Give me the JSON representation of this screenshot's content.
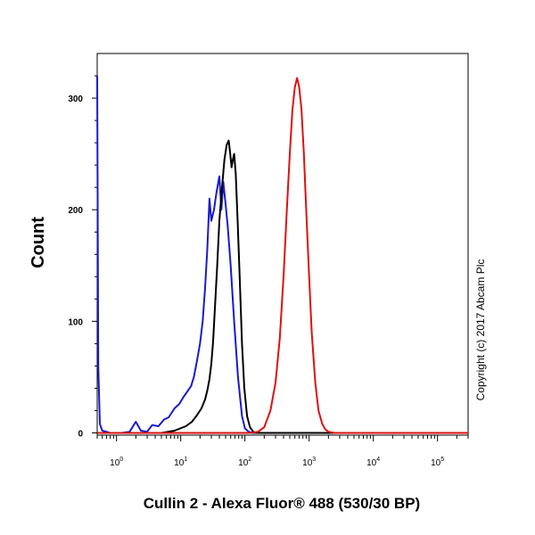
{
  "chart_data": {
    "type": "line",
    "xlabel": "Cullin 2 - Alexa Fluor® 488 (530/30 BP)",
    "ylabel": "Count",
    "copyright": "Copyright (c) 2017 Abcam Plc",
    "x_scale": "log",
    "xlim": [
      0.5,
      300000
    ],
    "ylim": [
      -2,
      340
    ],
    "yticks": [
      0,
      100,
      200,
      300
    ],
    "xticks": [
      {
        "base": "10",
        "exp": "0",
        "value": 1
      },
      {
        "base": "10",
        "exp": "1",
        "value": 10
      },
      {
        "base": "10",
        "exp": "2",
        "value": 100
      },
      {
        "base": "10",
        "exp": "3",
        "value": 1000
      },
      {
        "base": "10",
        "exp": "4",
        "value": 10000
      },
      {
        "base": "10",
        "exp": "5",
        "value": 100000
      }
    ],
    "series": [
      {
        "color": "#1a1acc",
        "points": [
          [
            0.5,
            320
          ],
          [
            0.52,
            60
          ],
          [
            0.55,
            8
          ],
          [
            0.6,
            2
          ],
          [
            0.8,
            0
          ],
          [
            1.2,
            0
          ],
          [
            1.6,
            1
          ],
          [
            2.0,
            10
          ],
          [
            2.4,
            2
          ],
          [
            3,
            1
          ],
          [
            3.6,
            7
          ],
          [
            4.5,
            6
          ],
          [
            5.5,
            12
          ],
          [
            6.5,
            14
          ],
          [
            8,
            22
          ],
          [
            9.5,
            26
          ],
          [
            11,
            32
          ],
          [
            13,
            38
          ],
          [
            14.5,
            42
          ],
          [
            16,
            50
          ],
          [
            18,
            65
          ],
          [
            20,
            80
          ],
          [
            22,
            100
          ],
          [
            24,
            130
          ],
          [
            26,
            165
          ],
          [
            28,
            210
          ],
          [
            30,
            190
          ],
          [
            33,
            200
          ],
          [
            36,
            215
          ],
          [
            40,
            230
          ],
          [
            43,
            200
          ],
          [
            46,
            225
          ],
          [
            50,
            205
          ],
          [
            54,
            185
          ],
          [
            60,
            150
          ],
          [
            68,
            100
          ],
          [
            78,
            50
          ],
          [
            90,
            15
          ],
          [
            100,
            4
          ],
          [
            115,
            1
          ],
          [
            130,
            0
          ],
          [
            200,
            0
          ],
          [
            300000,
            0
          ]
        ]
      },
      {
        "color": "#000000",
        "points": [
          [
            0.5,
            0
          ],
          [
            2,
            0
          ],
          [
            5,
            0
          ],
          [
            8,
            2
          ],
          [
            12,
            6
          ],
          [
            15,
            10
          ],
          [
            18,
            16
          ],
          [
            21,
            22
          ],
          [
            24,
            30
          ],
          [
            26,
            38
          ],
          [
            28,
            48
          ],
          [
            30,
            62
          ],
          [
            32,
            82
          ],
          [
            34,
            110
          ],
          [
            37,
            150
          ],
          [
            40,
            190
          ],
          [
            44,
            220
          ],
          [
            48,
            245
          ],
          [
            52,
            258
          ],
          [
            56,
            262
          ],
          [
            59,
            250
          ],
          [
            62,
            238
          ],
          [
            65,
            245
          ],
          [
            68,
            250
          ],
          [
            72,
            232
          ],
          [
            77,
            190
          ],
          [
            83,
            140
          ],
          [
            90,
            80
          ],
          [
            98,
            40
          ],
          [
            108,
            15
          ],
          [
            120,
            5
          ],
          [
            135,
            1
          ],
          [
            150,
            0
          ],
          [
            300000,
            0
          ]
        ]
      },
      {
        "color": "#dd1111",
        "points": [
          [
            0.5,
            0
          ],
          [
            120,
            0
          ],
          [
            160,
            1
          ],
          [
            200,
            5
          ],
          [
            250,
            20
          ],
          [
            300,
            45
          ],
          [
            350,
            85
          ],
          [
            400,
            140
          ],
          [
            450,
            200
          ],
          [
            500,
            250
          ],
          [
            550,
            290
          ],
          [
            600,
            310
          ],
          [
            650,
            318
          ],
          [
            700,
            310
          ],
          [
            760,
            290
          ],
          [
            830,
            250
          ],
          [
            900,
            200
          ],
          [
            1000,
            140
          ],
          [
            1100,
            90
          ],
          [
            1250,
            45
          ],
          [
            1400,
            20
          ],
          [
            1600,
            8
          ],
          [
            1800,
            3
          ],
          [
            2000,
            1
          ],
          [
            2500,
            0
          ],
          [
            300000,
            0
          ]
        ]
      }
    ]
  }
}
